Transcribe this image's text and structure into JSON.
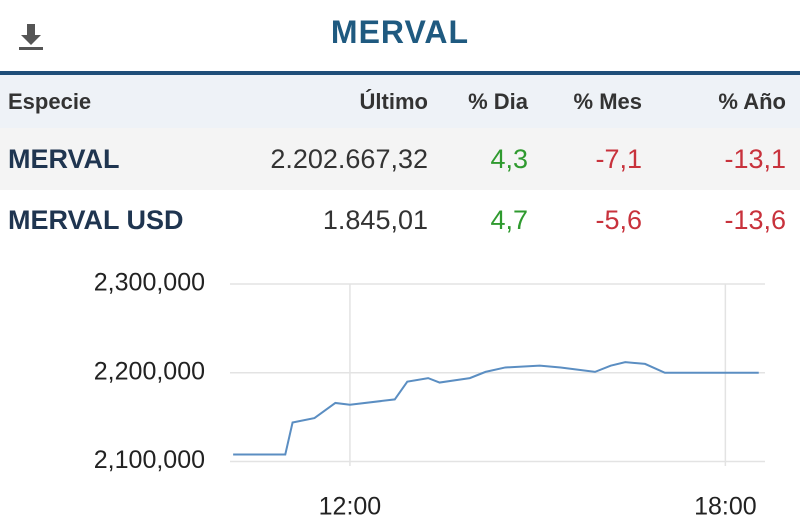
{
  "header": {
    "title": "MERVAL"
  },
  "table": {
    "columns": [
      "Especie",
      "Último",
      "% Dia",
      "% Mes",
      "% Año"
    ],
    "rows": [
      [
        "MERVAL",
        "2.202.667,32",
        "4,3",
        "-7,1",
        "-13,1"
      ],
      [
        "MERVAL USD",
        "1.845,01",
        "4,7",
        "-5,6",
        "-13,6"
      ]
    ]
  },
  "chart_data": {
    "type": "line",
    "x": [
      "10:08",
      "10:58",
      "11:05",
      "11:26",
      "11:46",
      "12:00",
      "12:43",
      "12:55",
      "13:15",
      "13:26",
      "13:55",
      "14:10",
      "14:29",
      "15:02",
      "15:22",
      "15:55",
      "16:10",
      "16:24",
      "16:43",
      "17:02",
      "18:32"
    ],
    "series": [
      {
        "name": "MERVAL",
        "color": "#5b8ec2",
        "values": [
          2108000,
          2108000,
          2144000,
          2149000,
          2166000,
          2164000,
          2170000,
          2190000,
          2194000,
          2189000,
          2194000,
          2201000,
          2206000,
          2208000,
          2206000,
          2201000,
          2208000,
          2212000,
          2210000,
          2200000,
          2200000
        ]
      }
    ],
    "xlim": [
      "10:05",
      "18:38"
    ],
    "xticks": [
      "12:00",
      "18:00"
    ],
    "ylim": [
      2095000,
      2300000
    ],
    "yticks": [
      {
        "value": 2100000,
        "label": "2,100,000"
      },
      {
        "value": 2200000,
        "label": "2,200,000"
      },
      {
        "value": 2300000,
        "label": "2,300,000"
      }
    ],
    "grid": true
  }
}
